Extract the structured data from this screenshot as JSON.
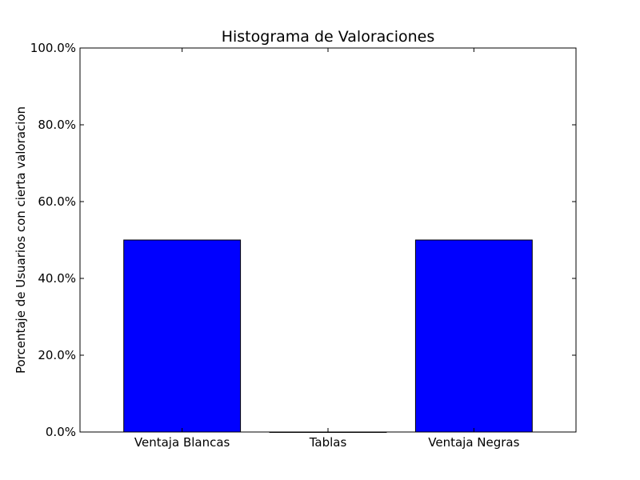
{
  "chart_data": {
    "type": "bar",
    "title": "Histograma de Valoraciones",
    "xlabel": "",
    "ylabel": "Porcentaje de Usuarios con cierta valoracion",
    "categories": [
      "Ventaja Blancas",
      "Tablas",
      "Ventaja Negras"
    ],
    "values": [
      50.0,
      0.0,
      50.0
    ],
    "ylim": [
      0,
      100
    ],
    "yticks": [
      0,
      20,
      40,
      60,
      80,
      100
    ],
    "ytick_labels": [
      "0.0%",
      "20.0%",
      "40.0%",
      "60.0%",
      "80.0%",
      "100.0%"
    ],
    "bar_color": "#0000ff",
    "edge_color": "#000000",
    "grid": false,
    "legend": "none"
  }
}
